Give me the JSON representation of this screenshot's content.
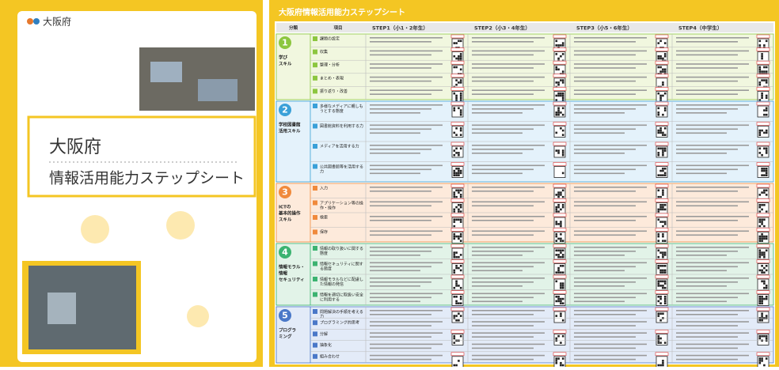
{
  "cover": {
    "logo": "大阪府",
    "title": "大阪府",
    "subtitle": "情報活用能力ステップシート"
  },
  "sheet": {
    "title": "大阪府情報活用能力ステップシート",
    "headers": [
      "分類",
      "項目",
      "STEP1（小1・2年生）",
      "STEP2（小3・4年生）",
      "STEP3（小5・6年生）",
      "STEP4（中学生）"
    ],
    "sections": [
      {
        "number": "1",
        "label": [
          "学び",
          "スキル"
        ],
        "color": "#8cc63f",
        "light": "#f1f7df",
        "items": [
          "課題の設定",
          "収集",
          "整理・分析",
          "まとめ・表現",
          "振り返り・改善"
        ]
      },
      {
        "number": "2",
        "label": [
          "学校図書館",
          "活用スキル"
        ],
        "color": "#3aa0d8",
        "light": "#e4f2fb",
        "items": [
          "多様なメディアに親しもうとする態度",
          "図書館資料を利用する力",
          "メディアを活用する力",
          "公共図書館等を活用する力"
        ]
      },
      {
        "number": "3",
        "label": [
          "ICTの",
          "基本的操作",
          "スキル"
        ],
        "color": "#f08a3c",
        "light": "#fdeadb",
        "items": [
          "入力",
          "アプリケーション等の操作・操作",
          "検索",
          "保存"
        ]
      },
      {
        "number": "4",
        "label": [
          "情報モラル・",
          "情報",
          "セキュリティ"
        ],
        "color": "#3cb371",
        "light": "#e2f3e8",
        "items": [
          "情報の取り扱いに関する態度",
          "情報セキュリティに関する態度",
          "情報モラルなどに配慮した情報の発信",
          "情報を適切に取扱い安全に利用する"
        ]
      },
      {
        "number": "5",
        "label": [
          "プログラ",
          "ミング"
        ],
        "color": "#4a78c8",
        "light": "#e3ebf8",
        "items": [
          "問題解決の手順を考える力",
          "プログラミング的思考",
          "分解",
          "抽象化",
          "組み合わせ"
        ]
      }
    ]
  }
}
